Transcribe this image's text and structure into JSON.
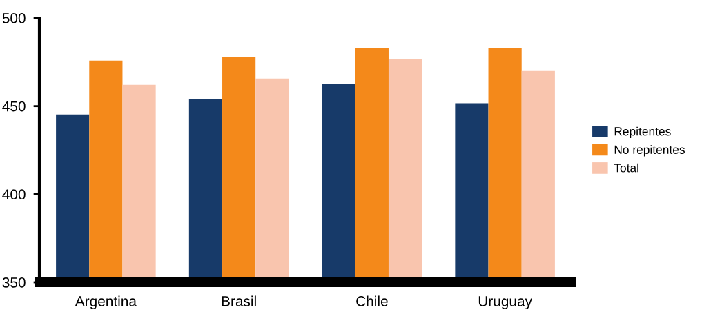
{
  "chart_data": {
    "type": "bar",
    "categories": [
      "Argentina",
      "Brasil",
      "Chile",
      "Uruguay"
    ],
    "series": [
      {
        "name": "Repitentes",
        "color": "#173a69",
        "values": [
          445.3,
          453.9,
          462.5,
          451.6
        ]
      },
      {
        "name": "No repitentes",
        "color": "#f4891a",
        "values": [
          475.8,
          478.1,
          483.2,
          482.8
        ]
      },
      {
        "name": "Total",
        "color": "#f9c5ae",
        "values": [
          462.1,
          465.6,
          476.6,
          469.9
        ]
      }
    ],
    "ylim": [
      350,
      500
    ],
    "yticks": [
      350,
      400,
      450,
      500
    ],
    "grid": false,
    "legend": "right"
  }
}
